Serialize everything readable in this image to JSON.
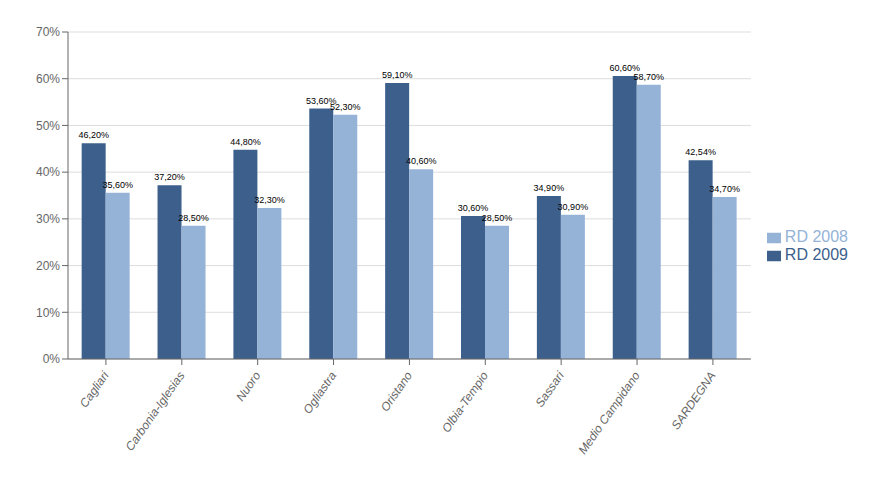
{
  "chart_data": {
    "type": "bar",
    "categories": [
      "Cagliari",
      "Carbonia-Iglesias",
      "Nuoro",
      "Ogliastra",
      "Oristano",
      "Olbia-Tempio",
      "Sassari",
      "Medio Campidano",
      "SARDEGNA"
    ],
    "series": [
      {
        "name": "RD 2009",
        "color": "#3C5F8C",
        "values": [
          46.2,
          37.2,
          44.8,
          53.6,
          59.1,
          30.6,
          34.9,
          60.6,
          42.54
        ],
        "value_labels": [
          "46,20%",
          "37,20%",
          "44,80%",
          "53,60%",
          "59,10%",
          "30,60%",
          "34,90%",
          "60,60%",
          "42,54%"
        ]
      },
      {
        "name": "RD 2008",
        "color": "#95B3D7",
        "values": [
          35.6,
          28.5,
          32.3,
          52.3,
          40.6,
          28.5,
          30.9,
          58.7,
          34.7
        ],
        "value_labels": [
          "35,60%",
          "28,50%",
          "32,30%",
          "52,30%",
          "40,60%",
          "28,50%",
          "30,90%",
          "58,70%",
          "34,70%"
        ]
      }
    ],
    "ylim": [
      0,
      70
    ],
    "yticks": [
      {
        "value": 0,
        "label": "0%"
      },
      {
        "value": 10,
        "label": "10%"
      },
      {
        "value": 20,
        "label": "20%"
      },
      {
        "value": 30,
        "label": "30%"
      },
      {
        "value": 40,
        "label": "40%"
      },
      {
        "value": 50,
        "label": "50%"
      },
      {
        "value": 60,
        "label": "60%"
      },
      {
        "value": 70,
        "label": "70%"
      }
    ],
    "grid": true,
    "legend": "right",
    "data_labels": true
  }
}
